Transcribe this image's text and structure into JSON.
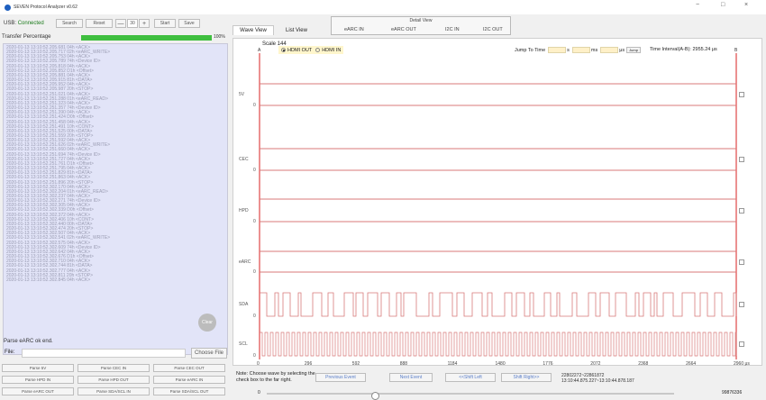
{
  "window": {
    "title": "SEVEN Protocol Analyzer v0.62",
    "controls": [
      "−",
      "□",
      "×"
    ]
  },
  "toolbar": {
    "usb_label": "USB:",
    "usb_status": "Connected",
    "search": "Search",
    "reset": "Reset",
    "minus": "—",
    "step_value": "30",
    "plus": "+",
    "start": "Start",
    "save": "Save"
  },
  "transfer": {
    "label": "Transfer Percentage",
    "progress": 100,
    "percent_text": "100%"
  },
  "log": {
    "lines": [
      "2020-01-13 13:10:52.205.681 04h <ACK>",
      "2020-01-13 13:10:52.205.717 02h <eARC_WRITE>",
      "2020-01-13 13:10:52.205.753 04h <ACK>",
      "2020-01-13 13:10:52.205.789 74h <Device ID>",
      "2020-01-13 13:10:52.205.818 04h <ACK>",
      "2020-01-13 13:10:52.205.852 D1h <Offset>",
      "2020-01-13 13:10:52.205.881 04h <ACK>",
      "2020-01-13 13:10:52.205.915 81h <DATA>",
      "2020-01-13 13:10:52.205.952 04h <ACK>",
      "2020-01-13 13:10:52.205.987 20h <STOP>",
      "2020-01-13 13:10:52.251.021 04h <ACK>",
      "2020-01-13 13:10:52.251.288 01h <eARC_READ>",
      "2020-01-13 13:10:52.251.323 04h <ACK>",
      "2020-01-13 13:10:52.251.357 74h <Device ID>",
      "2020-01-13 13:10:52.251.390 04h <ACK>",
      "2020-01-13 13:10:52.251.424 D0h <Offset>",
      "2020-01-13 13:10:52.251.458 04h <ACK>",
      "2020-01-13 13:10:52.251.491 10h <CONT>",
      "2020-01-13 13:10:52.251.525 00h <DATA>",
      "2020-01-13 13:10:52.251.559 20h <STOP>",
      "2020-01-13 13:10:52.251.592 04h <ACK>",
      "2020-01-13 13:10:52.251.626 02h <eARC_WRITE>",
      "2020-01-13 13:10:52.251.660 04h <ACK>",
      "2020-01-13 13:10:52.251.694 74h <Device ID>",
      "2020-01-13 13:10:52.251.727 04h <ACK>",
      "2020-01-13 13:10:52.251.761 D1h <Offset>",
      "2020-01-13 13:10:52.251.795 04h <ACK>",
      "2020-01-13 13:10:52.251.829 81h <DATA>",
      "2020-01-13 13:10:52.251.863 04h <ACK>",
      "2020-01-13 13:10:52.251.896 20h <STOP>",
      "2020-01-13 13:10:52.302.170 04h <ACK>",
      "2020-01-13 13:10:52.302.204 01h <eARC_READ>",
      "2020-01-13 13:10:52.302.237 04h <ACK>",
      "2020-01-13 13:10:52.302.271 74h <Device ID>",
      "2020-01-13 13:10:52.302.305 04h <ACK>",
      "2020-01-13 13:10:52.302.339 D0h <Offset>",
      "2020-01-13 13:10:52.302.372 04h <ACK>",
      "2020-01-13 13:10:52.302.406 10h <CONT>",
      "2020-01-13 13:10:52.302.440 00h <DATA>",
      "2020-01-13 13:10:52.302.474 20h <STOP>",
      "2020-01-13 13:10:52.302.507 04h <ACK>",
      "2020-01-13 13:10:52.302.541 02h <eARC_WRITE>",
      "2020-01-13 13:10:52.302.575 04h <ACK>",
      "2020-01-13 13:10:52.302.609 74h <Device ID>",
      "2020-01-13 13:10:52.302.642 04h <ACK>",
      "2020-01-13 13:10:52.302.676 D1h <Offset>",
      "2020-01-13 13:10:52.302.710 04h <ACK>",
      "2020-01-13 13:10:52.302.744 81h <DATA>",
      "2020-01-13 13:10:52.302.777 04h <ACK>",
      "2020-01-13 13:10:52.302.811 20h <STOP>",
      "2020-01-13 13:10:52.302.845 04h <ACK>"
    ],
    "clear": "Clear"
  },
  "parse_status": "Parse eARC ok end.",
  "file": {
    "label": "File:",
    "value": "",
    "choose": "Choose File"
  },
  "parse_buttons": [
    "Parse 5V",
    "Parse CEC IN",
    "Parse CEC OUT",
    "Parse HPD IN",
    "Parse HPD OUT",
    "Parse eARC IN",
    "Parse eARC OUT",
    "Parse SDA/SCL IN",
    "Parse SDA/SCL OUT"
  ],
  "tabs": {
    "wave_view": "Wave View",
    "list_view": "List View"
  },
  "detail_view": {
    "title": "Detail View",
    "items": [
      "eARC IN",
      "eARC OUT",
      "I2C IN",
      "I2C OUT"
    ]
  },
  "wave": {
    "scale": "Scale 144",
    "hdmi_out": "HDMI OUT",
    "hdmi_in": "HDMI IN",
    "jump_label": "Jump To Time",
    "unit_s": "s",
    "unit_ms": "ms",
    "unit_us": "μs",
    "jump_btn": "Jump",
    "interval": "Time Interval(A-B): 2955.24 μs",
    "marker_a": "A",
    "marker_b": "B",
    "channels": [
      "5V",
      "CEC",
      "HPD",
      "eARC",
      "SDA",
      "SCL"
    ],
    "axis_ticks": [
      "0",
      "296",
      "592",
      "888",
      "1184",
      "1480",
      "1776",
      "2072",
      "2368",
      "2664",
      "2960 μs"
    ],
    "zero_labels": [
      "0",
      "0",
      "0",
      "0",
      "0",
      "0"
    ],
    "line_color": "#d87a7a",
    "marker_color": "#e04848"
  },
  "bottom": {
    "note": "Note: Choose wave by selecting the check box to the far right.",
    "prev_event": "Previous Event",
    "next_event": "Next Event",
    "shift_left": "<<Shift Left",
    "shift_right": "Shift Right>>",
    "range_line1": "22802272~22861872",
    "range_line2": "13:10:44.875.227~13:10:44.878.187",
    "slider_start": "0",
    "slider_end": "99876336"
  }
}
